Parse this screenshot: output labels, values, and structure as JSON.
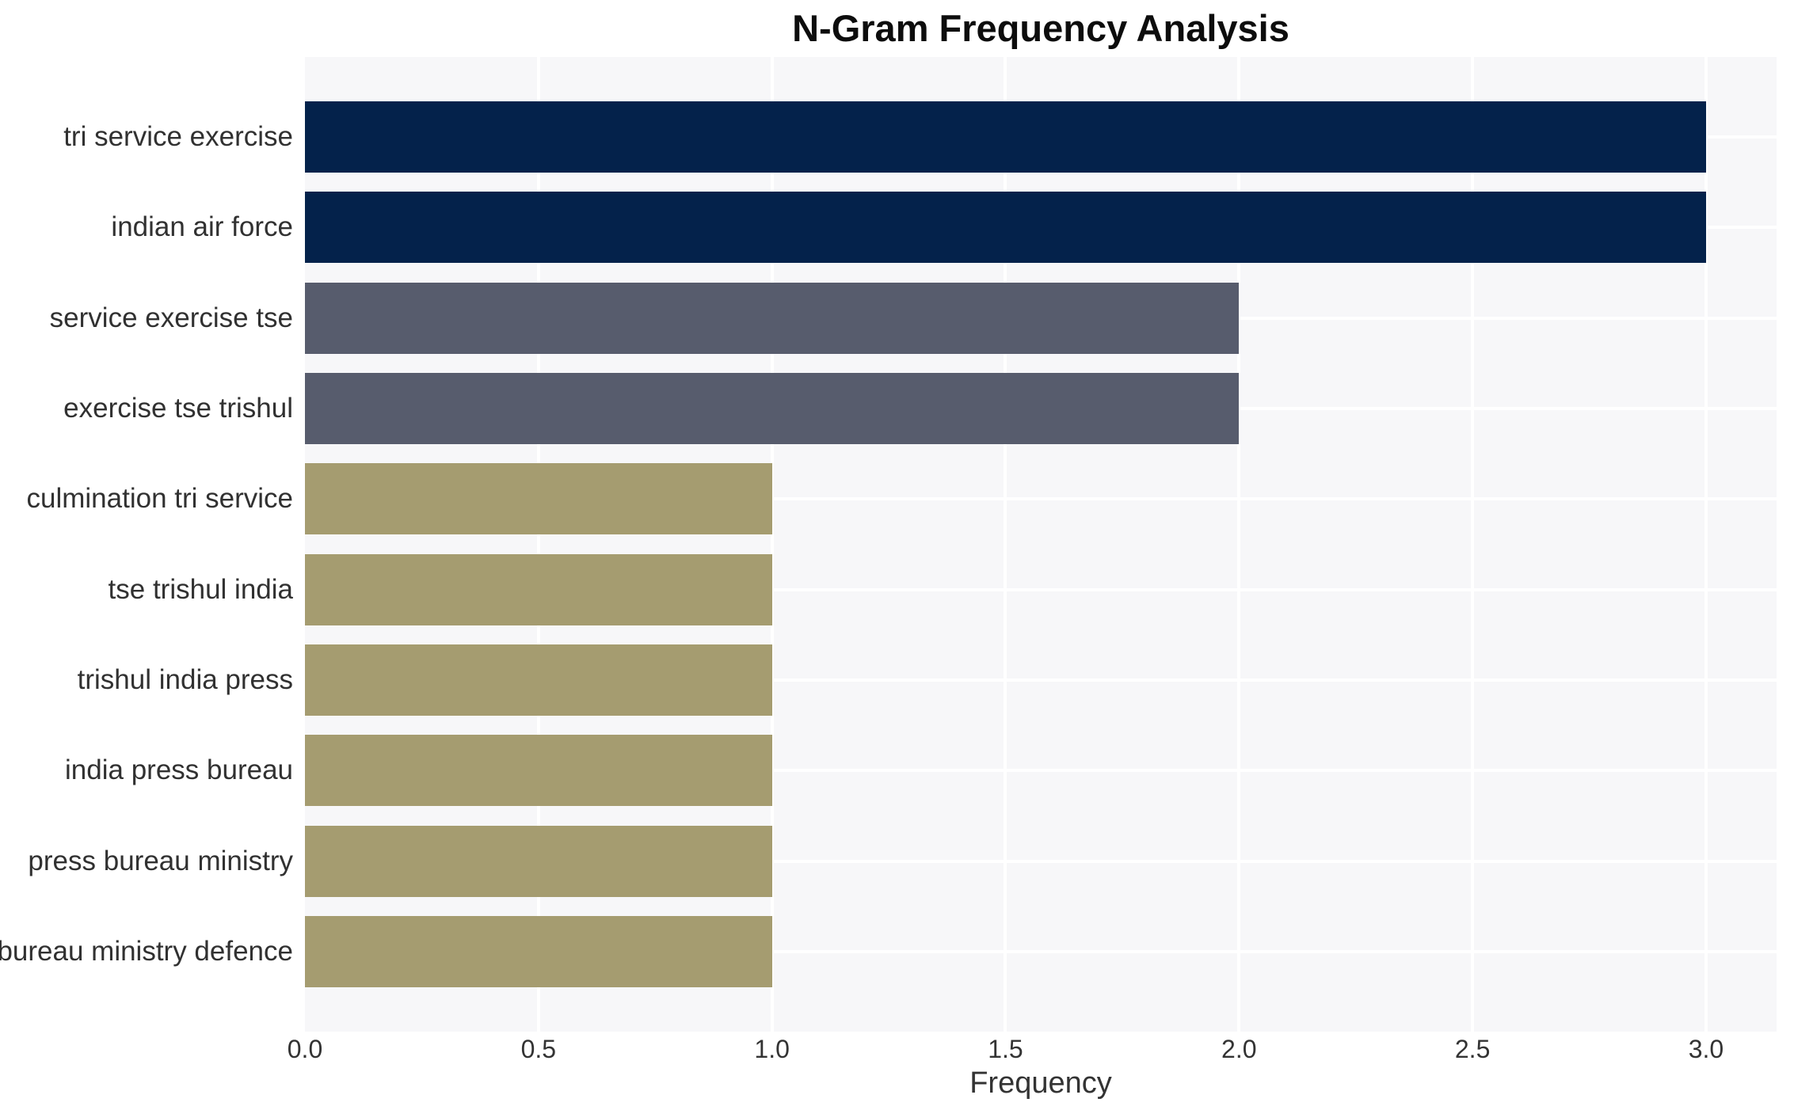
{
  "chart_data": {
    "type": "bar",
    "orientation": "horizontal",
    "title": "N-Gram Frequency Analysis",
    "xlabel": "Frequency",
    "ylabel": "",
    "categories": [
      "tri service exercise",
      "indian air force",
      "service exercise tse",
      "exercise tse trishul",
      "culmination tri service",
      "tse trishul india",
      "trishul india press",
      "india press bureau",
      "press bureau ministry",
      "bureau ministry defence"
    ],
    "values": [
      3,
      3,
      2,
      2,
      1,
      1,
      1,
      1,
      1,
      1
    ],
    "bar_colors": [
      "#04224b",
      "#04224b",
      "#575c6d",
      "#575c6d",
      "#a59c70",
      "#a59c70",
      "#a59c70",
      "#a59c70",
      "#a59c70",
      "#a59c70"
    ],
    "xticks": {
      "values": [
        0,
        0.5,
        1,
        1.5,
        2,
        2.5,
        3
      ],
      "labels": [
        "0.0",
        "0.5",
        "1.0",
        "1.5",
        "2.0",
        "2.5",
        "3.0"
      ]
    },
    "xlim": [
      0,
      3.151
    ],
    "grid": true,
    "legend": false,
    "colors": {
      "freq_3": "#04224b",
      "freq_2": "#575c6d",
      "freq_1": "#a59c70",
      "panel_background": "#f7f7f9",
      "gridline": "#ffffff",
      "title_text": "#0d0d0d",
      "axis_text": "#333333",
      "category_text": "#313131"
    }
  }
}
